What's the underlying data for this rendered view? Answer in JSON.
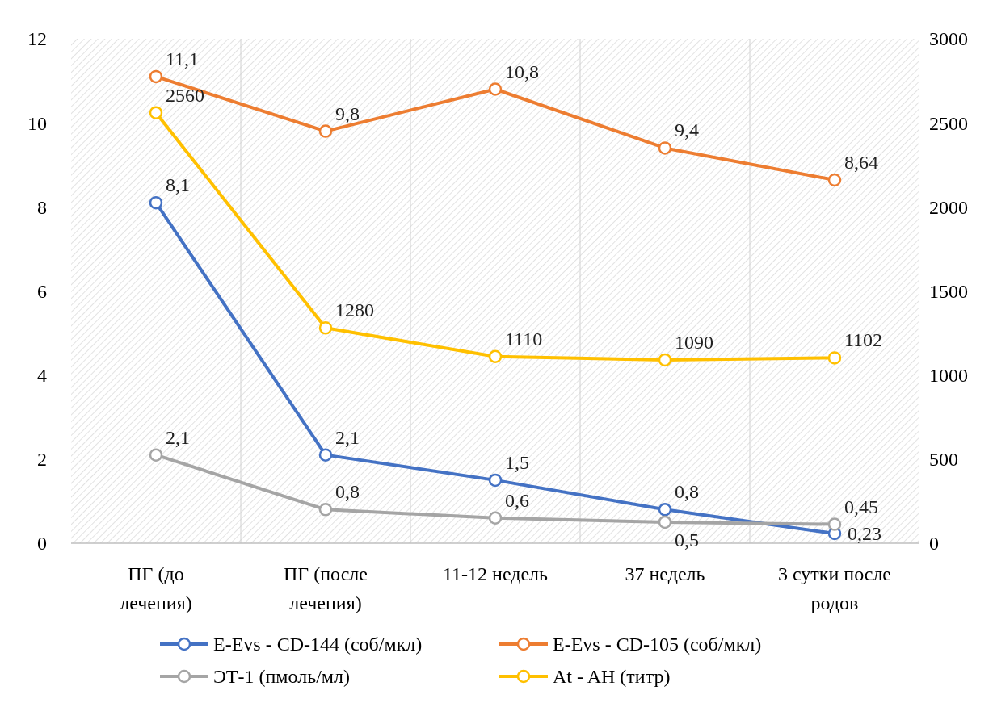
{
  "chart_data": {
    "type": "line",
    "categories": [
      "ПГ (до лечения)",
      "ПГ (после лечения)",
      "11-12 недель",
      "37 недель",
      "3 сутки после родов"
    ],
    "series": [
      {
        "name": "E-Evs - CD-144 (соб/мкл)",
        "color": "#4472c4",
        "values": [
          8.1,
          2.1,
          1.5,
          0.8,
          0.23
        ],
        "value_labels": [
          "8,1",
          "2,1",
          "1,5",
          "0,8",
          "0,23"
        ]
      },
      {
        "name": "E-Evs - CD-105 (соб/мкл)",
        "color": "#ed7d31",
        "values": [
          11.1,
          9.8,
          10.8,
          9.4,
          8.64
        ],
        "value_labels": [
          "11,1",
          "9,8",
          "10,8",
          "9,4",
          "8,64"
        ]
      },
      {
        "name": "ЭТ-1 (пмоль/мл)",
        "color": "#a5a5a5",
        "values": [
          2.1,
          0.8,
          0.6,
          0.5,
          0.45
        ],
        "value_labels": [
          "2,1",
          "0,8",
          "0,6",
          "0,5",
          "0,45"
        ]
      },
      {
        "name": "At - AH (титр)",
        "color": "#ffc000",
        "axis": "y2",
        "values": [
          2560,
          1280,
          1110,
          1090,
          1102
        ],
        "value_labels": [
          "2560",
          "1280",
          "1110",
          "1090",
          "1102"
        ]
      }
    ],
    "ylim": [
      0,
      12
    ],
    "yticks": [
      0,
      2,
      4,
      6,
      8,
      10,
      12
    ],
    "y2lim": [
      0,
      3000
    ],
    "y2ticks": [
      0,
      500,
      1000,
      1500,
      2000,
      2500,
      3000
    ],
    "grid": "x",
    "legend": "bottom",
    "marker": "circle",
    "line_style": "solid"
  }
}
